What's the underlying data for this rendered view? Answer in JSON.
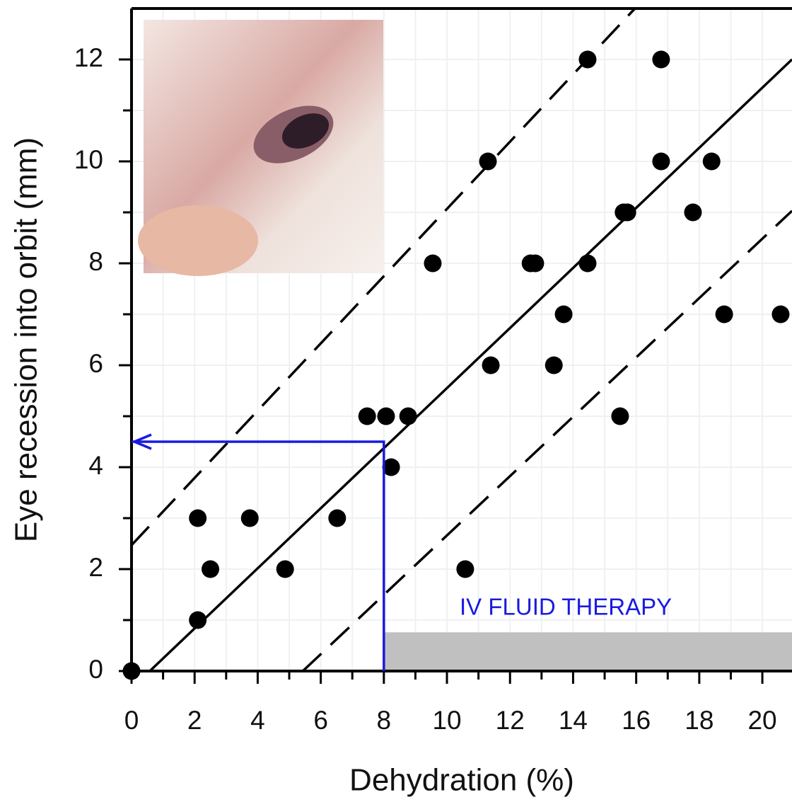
{
  "chart_data": {
    "type": "scatter",
    "x_label": "Dehydration (%)",
    "y_label": "Eye recession into orbit (mm)",
    "xlim": [
      0,
      20.94
    ],
    "ylim": [
      0,
      13
    ],
    "xticks": [
      0,
      2,
      4,
      6,
      8,
      10,
      12,
      14,
      16,
      18,
      20
    ],
    "yticks": [
      0,
      2,
      4,
      6,
      8,
      10,
      12
    ],
    "xminorticks": [
      1,
      3,
      5,
      7,
      9,
      11,
      13,
      15,
      17,
      19
    ],
    "yminorticks": [
      1,
      3,
      5,
      7,
      9,
      11
    ],
    "grid": true,
    "color": "#000000",
    "x": [
      0,
      2.1,
      2.1,
      2.5,
      3.75,
      4.87,
      6.52,
      7.47,
      8.07,
      8.77,
      8.23,
      9.55,
      10.58,
      11.3,
      11.39,
      12.65,
      12.8,
      13.39,
      13.7,
      14.46,
      14.46,
      15.49,
      15.6,
      15.72,
      16.79,
      16.79,
      17.8,
      18.39,
      18.79,
      20.58
    ],
    "values": [
      0,
      1,
      3,
      2,
      3,
      2,
      3,
      5,
      5,
      5,
      4,
      8,
      2,
      10,
      6,
      8,
      8,
      6,
      7,
      8,
      12,
      5,
      9,
      9,
      12,
      10,
      9,
      10,
      7,
      7
    ],
    "fit_lines": [
      {
        "dash": false,
        "color": "#000000",
        "x": [
          0.58,
          20.94
        ],
        "y": [
          0,
          12
        ]
      },
      {
        "dash": true,
        "color": "#000000",
        "x": [
          0,
          15.96
        ],
        "y": [
          2.47,
          13
        ]
      },
      {
        "dash": true,
        "color": "#000000",
        "x": [
          5.43,
          20.94
        ],
        "y": [
          0,
          9.03
        ]
      }
    ],
    "arrow": {
      "color": "#1a1adf",
      "x": [
        8,
        8,
        0
      ],
      "y": [
        0,
        4.5,
        4.5
      ]
    },
    "shaded_region": {
      "color": "#c0c0c0",
      "x": [
        8,
        20.94
      ],
      "y": [
        0,
        0.76
      ]
    },
    "annotation": "IV FLUID THERAPY"
  }
}
